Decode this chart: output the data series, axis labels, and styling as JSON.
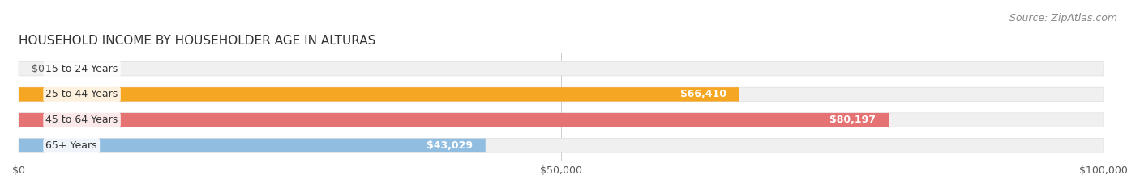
{
  "title": "HOUSEHOLD INCOME BY HOUSEHOLDER AGE IN ALTURAS",
  "source": "Source: ZipAtlas.com",
  "categories": [
    "15 to 24 Years",
    "25 to 44 Years",
    "45 to 64 Years",
    "65+ Years"
  ],
  "values": [
    0,
    66410,
    80197,
    43029
  ],
  "labels": [
    "$0",
    "$66,410",
    "$80,197",
    "$43,029"
  ],
  "bar_colors": [
    "#f48fb1",
    "#f5a623",
    "#e57373",
    "#90bde0"
  ],
  "bar_bg_colors": [
    "#f5f5f5",
    "#f5f5f5",
    "#f5f5f5",
    "#f5f5f5"
  ],
  "xlim": [
    0,
    100000
  ],
  "xticks": [
    0,
    50000,
    100000
  ],
  "xtick_labels": [
    "$0",
    "$50,000",
    "$100,000"
  ],
  "title_fontsize": 11,
  "source_fontsize": 9,
  "label_fontsize": 9,
  "tick_fontsize": 9,
  "cat_fontsize": 9,
  "background_color": "#ffffff",
  "bar_height": 0.55,
  "bar_bg_alpha": 1.0
}
